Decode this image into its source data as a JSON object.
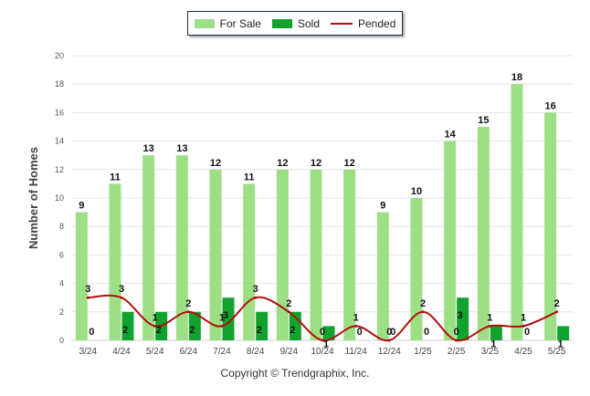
{
  "legend": {
    "items": [
      {
        "label": "For Sale",
        "color": "#9ddf85"
      },
      {
        "label": "Sold",
        "color": "#11a32d"
      },
      {
        "label": "Pended",
        "color": "#b40d0d"
      }
    ]
  },
  "footer": {
    "text": "Copyright © Trendgraphix, Inc."
  },
  "chart_data": {
    "type": "bar",
    "categories": [
      "3/24",
      "4/24",
      "5/24",
      "6/24",
      "7/24",
      "8/24",
      "9/24",
      "10/24",
      "11/24",
      "12/24",
      "1/25",
      "2/25",
      "3/25",
      "4/25",
      "5/25"
    ],
    "series": [
      {
        "name": "For Sale",
        "kind": "bar",
        "color": "#9ddf85",
        "values": [
          9,
          11,
          13,
          13,
          12,
          11,
          12,
          12,
          12,
          9,
          10,
          14,
          15,
          18,
          16
        ]
      },
      {
        "name": "Sold",
        "kind": "bar",
        "color": "#11a32d",
        "values": [
          0,
          2,
          2,
          2,
          3,
          2,
          2,
          1,
          0,
          0,
          0,
          3,
          1,
          0,
          1
        ]
      },
      {
        "name": "Pended",
        "kind": "line",
        "color": "#b40d0d",
        "values": [
          3,
          3,
          1,
          2,
          1,
          3,
          2,
          0,
          1,
          0,
          2,
          0,
          1,
          1,
          2
        ]
      }
    ],
    "ylabel": "Number of Homes",
    "xlabel": "",
    "ylim": [
      0,
      20
    ],
    "yticks": [
      0,
      2,
      4,
      6,
      8,
      10,
      12,
      14,
      16,
      18,
      20
    ],
    "grid": true,
    "legend_position": "top-center"
  }
}
